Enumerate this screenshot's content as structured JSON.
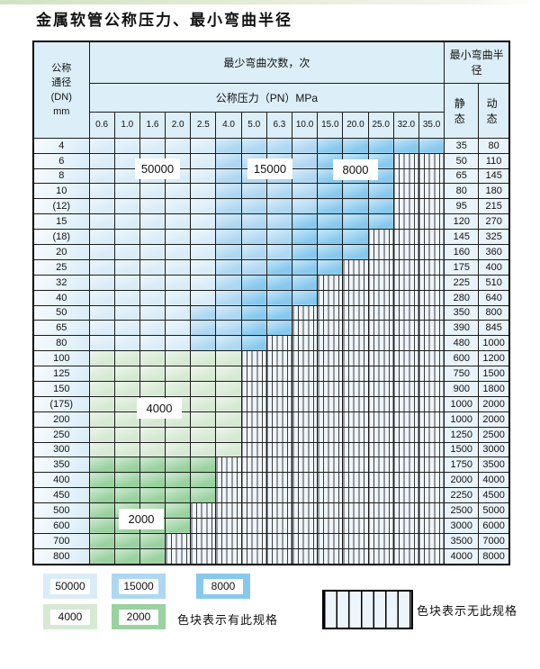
{
  "title": "金属软管公称压力、最小弯曲半径",
  "colors": {
    "c50000": "#d9ecf8",
    "c15000": "#aed7f2",
    "c8000": "#87c9ee",
    "c4000": "#d6e9d3",
    "c2000": "#99d19f",
    "hatchbg": "#eef5fb",
    "headerbg": "#dceef8",
    "valuebg": "#e9f3fb"
  },
  "table": {
    "dn_header_lines": [
      "公称",
      "通径",
      "(DN)",
      "mm"
    ],
    "cycles_header": "最少弯曲次数，次",
    "pressure_header": "公称压力（PN）MPa",
    "radius_header": "最小弯曲半径",
    "static_header": "静 态",
    "dynamic_header": "动 态",
    "pressure_values": [
      "0.6",
      "1.0",
      "1.6",
      "2.0",
      "2.5",
      "4.0",
      "5.0",
      "6.3",
      "10.0",
      "15.0",
      "20.0",
      "25.0",
      "32.0",
      "35.0"
    ],
    "patterns": {
      "A": [
        "c50000",
        "c50000",
        "c50000",
        "c50000",
        "c50000",
        "c15000",
        "c15000",
        "c15000",
        "c15000",
        "c8000",
        "c8000",
        "c8000",
        "c8000",
        "c8000"
      ],
      "B": [
        "c50000",
        "c50000",
        "c50000",
        "c50000",
        "c50000",
        "c15000",
        "c15000",
        "c15000",
        "c15000",
        "c8000",
        "c8000",
        "c8000",
        "x",
        "x"
      ],
      "C": [
        "c50000",
        "c50000",
        "c50000",
        "c50000",
        "c50000",
        "c15000",
        "c15000",
        "c15000",
        "c8000",
        "c8000",
        "c8000",
        "c8000",
        "x",
        "x"
      ],
      "D": [
        "c50000",
        "c50000",
        "c50000",
        "c50000",
        "c50000",
        "c15000",
        "c15000",
        "c15000",
        "c8000",
        "c8000",
        "c8000",
        "x",
        "x",
        "x"
      ],
      "E": [
        "c50000",
        "c50000",
        "c50000",
        "c50000",
        "c50000",
        "c15000",
        "c15000",
        "c8000",
        "c8000",
        "c8000",
        "x",
        "x",
        "x",
        "x"
      ],
      "F": [
        "c50000",
        "c50000",
        "c50000",
        "c50000",
        "c50000",
        "c15000",
        "c8000",
        "c8000",
        "c8000",
        "x",
        "x",
        "x",
        "x",
        "x"
      ],
      "G": [
        "c50000",
        "c50000",
        "c50000",
        "c50000",
        "c15000",
        "c15000",
        "c8000",
        "c8000",
        "x",
        "x",
        "x",
        "x",
        "x",
        "x"
      ],
      "H": [
        "c50000",
        "c50000",
        "c50000",
        "c50000",
        "c15000",
        "c15000",
        "c8000",
        "x",
        "x",
        "x",
        "x",
        "x",
        "x",
        "x"
      ],
      "I": [
        "c4000",
        "c4000",
        "c4000",
        "c4000",
        "c4000",
        "c4000",
        "x",
        "x",
        "x",
        "x",
        "x",
        "x",
        "x",
        "x"
      ],
      "J": [
        "c2000",
        "c2000",
        "c2000",
        "c2000",
        "c2000",
        "x",
        "x",
        "x",
        "x",
        "x",
        "x",
        "x",
        "x",
        "x"
      ],
      "K": [
        "c2000",
        "c2000",
        "c2000",
        "c2000",
        "x",
        "x",
        "x",
        "x",
        "x",
        "x",
        "x",
        "x",
        "x",
        "x"
      ],
      "L": [
        "c2000",
        "c2000",
        "c2000",
        "x",
        "x",
        "x",
        "x",
        "x",
        "x",
        "x",
        "x",
        "x",
        "x",
        "x"
      ]
    },
    "rows": [
      {
        "dn": "4",
        "pattern": "A",
        "static": "35",
        "dynamic": "80"
      },
      {
        "dn": "6",
        "pattern": "B",
        "static": "50",
        "dynamic": "110"
      },
      {
        "dn": "8",
        "pattern": "B",
        "static": "65",
        "dynamic": "145"
      },
      {
        "dn": "10",
        "pattern": "B",
        "static": "80",
        "dynamic": "180"
      },
      {
        "dn": "(12)",
        "pattern": "B",
        "static": "95",
        "dynamic": "215"
      },
      {
        "dn": "15",
        "pattern": "C",
        "static": "120",
        "dynamic": "270"
      },
      {
        "dn": "(18)",
        "pattern": "D",
        "static": "145",
        "dynamic": "325"
      },
      {
        "dn": "20",
        "pattern": "D",
        "static": "160",
        "dynamic": "360"
      },
      {
        "dn": "25",
        "pattern": "E",
        "static": "175",
        "dynamic": "400"
      },
      {
        "dn": "32",
        "pattern": "F",
        "static": "225",
        "dynamic": "510"
      },
      {
        "dn": "40",
        "pattern": "F",
        "static": "280",
        "dynamic": "640"
      },
      {
        "dn": "50",
        "pattern": "G",
        "static": "350",
        "dynamic": "800"
      },
      {
        "dn": "65",
        "pattern": "G",
        "static": "390",
        "dynamic": "845"
      },
      {
        "dn": "80",
        "pattern": "H",
        "static": "480",
        "dynamic": "1000"
      },
      {
        "dn": "100",
        "pattern": "I",
        "static": "600",
        "dynamic": "1200"
      },
      {
        "dn": "125",
        "pattern": "I",
        "static": "750",
        "dynamic": "1500"
      },
      {
        "dn": "150",
        "pattern": "I",
        "static": "900",
        "dynamic": "1800"
      },
      {
        "dn": "(175)",
        "pattern": "I",
        "static": "1000",
        "dynamic": "2000"
      },
      {
        "dn": "200",
        "pattern": "I",
        "static": "1000",
        "dynamic": "2000"
      },
      {
        "dn": "250",
        "pattern": "I",
        "static": "1250",
        "dynamic": "2500"
      },
      {
        "dn": "300",
        "pattern": "I",
        "static": "1500",
        "dynamic": "3000"
      },
      {
        "dn": "350",
        "pattern": "J",
        "static": "1750",
        "dynamic": "3500"
      },
      {
        "dn": "400",
        "pattern": "J",
        "static": "2000",
        "dynamic": "4000"
      },
      {
        "dn": "450",
        "pattern": "J",
        "static": "2250",
        "dynamic": "4500"
      },
      {
        "dn": "500",
        "pattern": "K",
        "static": "2500",
        "dynamic": "5000"
      },
      {
        "dn": "600",
        "pattern": "K",
        "static": "3000",
        "dynamic": "6000"
      },
      {
        "dn": "700",
        "pattern": "L",
        "static": "3500",
        "dynamic": "7000"
      },
      {
        "dn": "800",
        "pattern": "L",
        "static": "4000",
        "dynamic": "8000"
      }
    ]
  },
  "overlays": [
    {
      "label": "50000"
    },
    {
      "label": "15000"
    },
    {
      "label": "8000"
    },
    {
      "label": "4000"
    },
    {
      "label": "2000"
    }
  ],
  "legend": {
    "swatches": [
      {
        "label": "50000"
      },
      {
        "label": "15000"
      },
      {
        "label": "8000"
      },
      {
        "label": "4000"
      },
      {
        "label": "2000"
      }
    ],
    "has_spec_text": "色块表示有此规格",
    "no_spec_text": "色块表示无此规格"
  }
}
